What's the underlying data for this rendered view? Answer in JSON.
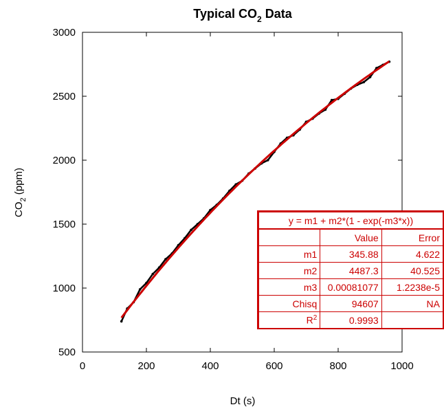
{
  "chart_data": {
    "type": "scatter",
    "title_main": "Typical CO",
    "title_sub": "2",
    "title_rest": " Data",
    "xlabel": "Dt (s)",
    "ylabel_main": "CO",
    "ylabel_sub": "2",
    "ylabel_rest": " (ppm)",
    "xlim": [
      0,
      1000
    ],
    "ylim": [
      500,
      3000
    ],
    "xticks": [
      0,
      200,
      400,
      600,
      800,
      1000
    ],
    "yticks": [
      500,
      1000,
      1500,
      2000,
      2500,
      3000
    ],
    "grid": false,
    "series": [
      {
        "color": "#000000",
        "x": [
          122,
          140,
          160,
          180,
          200,
          220,
          240,
          260,
          280,
          300,
          320,
          340,
          360,
          380,
          400,
          420,
          440,
          460,
          480,
          500,
          520,
          540,
          560,
          580,
          600,
          620,
          640,
          660,
          680,
          700,
          720,
          740,
          760,
          780,
          800,
          820,
          840,
          860,
          880,
          900,
          920,
          940,
          960
        ],
        "y": [
          740,
          840,
          890,
          990,
          1040,
          1110,
          1160,
          1225,
          1270,
          1335,
          1390,
          1455,
          1500,
          1545,
          1610,
          1650,
          1700,
          1760,
          1810,
          1840,
          1895,
          1935,
          1975,
          2000,
          2065,
          2130,
          2175,
          2195,
          2240,
          2300,
          2325,
          2365,
          2395,
          2470,
          2480,
          2520,
          2560,
          2590,
          2610,
          2650,
          2720,
          2745,
          2770
        ]
      },
      {
        "color": "#cc0000",
        "fit": {
          "m1": 345.88,
          "m2": 4487.3,
          "m3": 0.00081077,
          "x_start": 122,
          "x_end": 960
        }
      }
    ]
  },
  "fit_table": {
    "equation": "y = m1 + m2*(1 - exp(-m3*x))",
    "headers": [
      "",
      "Value",
      "Error"
    ],
    "rows": [
      {
        "name": "m1",
        "value": "345.88",
        "error": "4.622"
      },
      {
        "name": "m2",
        "value": "4487.3",
        "error": "40.525"
      },
      {
        "name": "m3",
        "value": "0.00081077",
        "error": "1.2238e-5"
      },
      {
        "name": "Chisq",
        "value": "94607",
        "error": "NA"
      }
    ],
    "r2_name": "R",
    "r2_sup": "2",
    "r2_value": "0.9993",
    "r2_error": ""
  }
}
